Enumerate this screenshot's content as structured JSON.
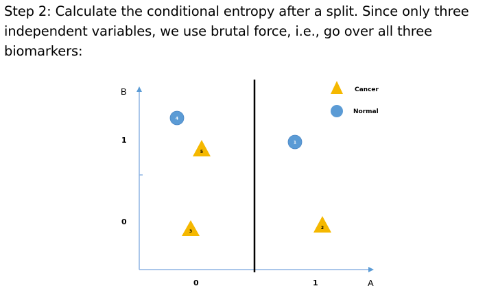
{
  "text": {
    "line1": "Step 2: Calculate the conditional entropy after a split. Since only three",
    "line2": "independent variables, we use brutal force, i.e., go over all three",
    "line3": "biomarkers:"
  },
  "diagram": {
    "y_axis_label": "B",
    "x_axis_label": "A",
    "y_ticks": [
      "1",
      "0"
    ],
    "x_ticks": [
      "0",
      "1"
    ],
    "legend": [
      {
        "label": "Cancer",
        "shape": "triangle",
        "color": "#F5B800"
      },
      {
        "label": "Normal",
        "shape": "circle",
        "color": "#5B9BD5"
      }
    ],
    "points": [
      {
        "id": "1",
        "class": "Normal"
      },
      {
        "id": "2",
        "class": "Cancer"
      },
      {
        "id": "3",
        "class": "Cancer"
      },
      {
        "id": "4",
        "class": "Normal"
      },
      {
        "id": "5",
        "class": "Cancer"
      }
    ],
    "colors": {
      "axis": "#8EB4E3",
      "divider": "#000000"
    }
  }
}
